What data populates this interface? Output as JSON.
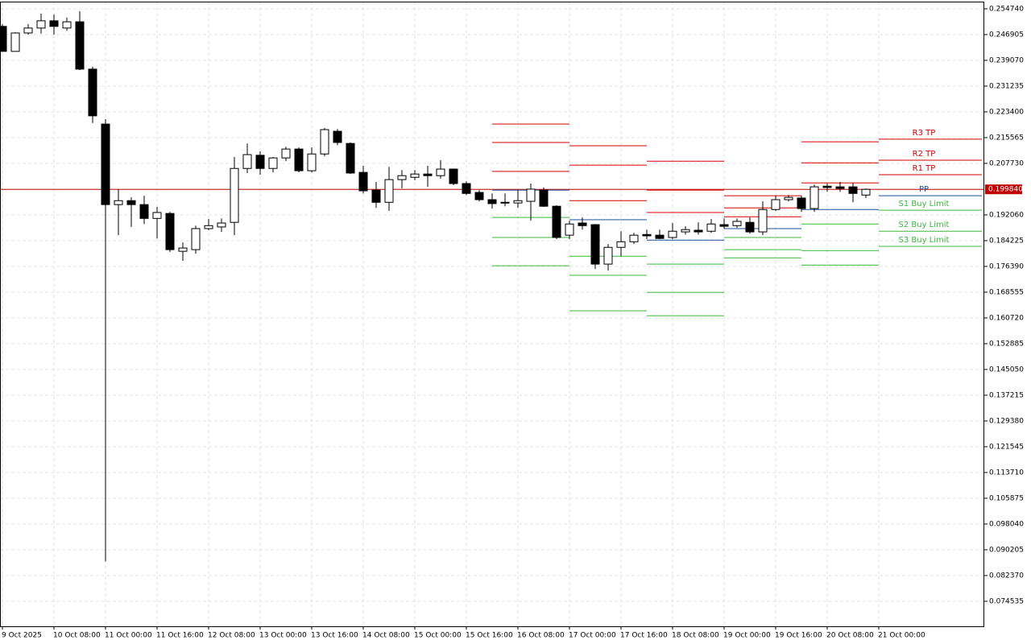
{
  "chart_data": {
    "type": "candlestick",
    "up_color": "#ffffff",
    "down_color": "#000000",
    "grid": true,
    "ylim": [
      0.06694,
      0.25694
    ],
    "yticks": [
      {
        "value": 0.25474,
        "label": "0.254740"
      },
      {
        "value": 0.246905,
        "label": "0.246905"
      },
      {
        "value": 0.23907,
        "label": "0.239070"
      },
      {
        "value": 0.231235,
        "label": "0.231235"
      },
      {
        "value": 0.2234,
        "label": "0.223400"
      },
      {
        "value": 0.215565,
        "label": "0.215565"
      },
      {
        "value": 0.20773,
        "label": "0.207730"
      },
      {
        "value": 0.19206,
        "label": "0.192060"
      },
      {
        "value": 0.184225,
        "label": "0.184225"
      },
      {
        "value": 0.17639,
        "label": "0.176390"
      },
      {
        "value": 0.168555,
        "label": "0.168555"
      },
      {
        "value": 0.16072,
        "label": "0.160720"
      },
      {
        "value": 0.152885,
        "label": "0.152885"
      },
      {
        "value": 0.14505,
        "label": "0.145050"
      },
      {
        "value": 0.137215,
        "label": "0.137215"
      },
      {
        "value": 0.12938,
        "label": "0.129380"
      },
      {
        "value": 0.121545,
        "label": "0.121545"
      },
      {
        "value": 0.11371,
        "label": "0.113710"
      },
      {
        "value": 0.105875,
        "label": "0.105875"
      },
      {
        "value": 0.09804,
        "label": "0.098040"
      },
      {
        "value": 0.090205,
        "label": "0.090205"
      },
      {
        "value": 0.08237,
        "label": "0.082370"
      },
      {
        "value": 0.074535,
        "label": "0.074535"
      }
    ],
    "categories": [
      "9 Oct 2025",
      null,
      null,
      null,
      "10 Oct 08:00",
      null,
      null,
      null,
      "11 Oct 00:00",
      null,
      null,
      null,
      "11 Oct 16:00",
      null,
      null,
      null,
      "12 Oct 08:00",
      null,
      null,
      null,
      "13 Oct 00:00",
      null,
      null,
      null,
      "13 Oct 16:00",
      null,
      null,
      null,
      "14 Oct 08:00",
      null,
      null,
      null,
      "15 Oct 00:00",
      null,
      null,
      null,
      "15 Oct 16:00",
      null,
      null,
      null,
      "16 Oct 08:00",
      null,
      null,
      null,
      "17 Oct 00:00",
      null,
      null,
      null,
      "17 Oct 16:00",
      null,
      null,
      null,
      "18 Oct 08:00",
      null,
      null,
      null,
      "19 Oct 00:00",
      null,
      null,
      null,
      "19 Oct 16:00",
      null,
      null,
      null,
      "20 Oct 08:00",
      null,
      null,
      null,
      "21 Oct 00:00",
      null,
      null,
      null,
      null,
      null,
      null,
      null
    ],
    "open": [
      0.2494,
      0.2418,
      0.2474,
      0.2489,
      0.2511,
      0.2489,
      0.2508,
      0.2364,
      0.2197,
      0.1952,
      0.1964,
      0.1952,
      0.191,
      0.1925,
      0.181,
      0.1815,
      0.1879,
      0.1884,
      0.1898,
      0.2062,
      0.2102,
      0.2062,
      0.2094,
      0.2121,
      0.2055,
      0.2106,
      0.2175,
      0.2138,
      0.205,
      0.1996,
      0.1959,
      0.2028,
      0.2035,
      0.2045,
      0.204,
      0.206,
      0.2016,
      0.1989,
      0.1967,
      0.1959,
      0.1957,
      0.1962,
      0.1996,
      0.1947,
      0.1859,
      0.1896,
      0.1891,
      0.1771,
      0.1822,
      0.1839,
      0.1861,
      0.1859,
      0.1852,
      0.1869,
      0.1874,
      0.1871,
      0.1891,
      0.1888,
      0.1898,
      0.1869,
      0.1937,
      0.1967,
      0.1972,
      0.194,
      0.2008,
      0.2006,
      0.2006,
      0.1981,
      null,
      null,
      null,
      null,
      null,
      null,
      null,
      null
    ],
    "high": [
      0.2501,
      0.2476,
      0.2501,
      0.2533,
      0.253,
      0.2521,
      0.254,
      0.2371,
      0.2212,
      0.1999,
      0.1974,
      0.1979,
      0.1945,
      0.193,
      0.1837,
      0.1888,
      0.1908,
      0.191,
      0.2097,
      0.2138,
      0.2114,
      0.2097,
      0.2128,
      0.2126,
      0.2126,
      0.2185,
      0.2182,
      0.2141,
      0.207,
      0.2021,
      0.2067,
      0.2057,
      0.2057,
      0.207,
      0.2087,
      0.2062,
      0.2023,
      0.1996,
      0.1986,
      0.1986,
      0.1996,
      0.2016,
      0.2004,
      0.195,
      0.1903,
      0.1913,
      0.1893,
      0.1832,
      0.1871,
      0.1866,
      0.1876,
      0.1876,
      0.1896,
      0.1886,
      0.1898,
      0.1908,
      0.191,
      0.191,
      0.1913,
      0.1962,
      0.1979,
      0.1981,
      0.1979,
      0.2013,
      0.2016,
      0.2021,
      0.2018,
      0.2001,
      null,
      null,
      null,
      null,
      null,
      null,
      null,
      null
    ],
    "low": [
      0.2418,
      0.2418,
      0.2469,
      0.2472,
      0.2469,
      0.2481,
      0.2361,
      0.22,
      0.0867,
      0.1859,
      0.1884,
      0.1893,
      0.1849,
      0.1808,
      0.1781,
      0.1803,
      0.1874,
      0.1869,
      0.1859,
      0.2048,
      0.2043,
      0.205,
      0.2084,
      0.205,
      0.205,
      0.2099,
      0.2133,
      0.2045,
      0.1986,
      0.1942,
      0.1933,
      0.2001,
      0.2026,
      0.2006,
      0.2031,
      0.2011,
      0.1981,
      0.1962,
      0.194,
      0.1947,
      0.1942,
      0.1903,
      0.1945,
      0.1847,
      0.1847,
      0.1876,
      0.1756,
      0.1751,
      0.1795,
      0.1832,
      0.1847,
      0.1847,
      0.1847,
      0.1861,
      0.1861,
      0.1866,
      0.1879,
      0.1881,
      0.1864,
      0.1859,
      0.1933,
      0.1962,
      0.193,
      0.193,
      0.1991,
      0.1991,
      0.1959,
      0.1972,
      null,
      null,
      null,
      null,
      null,
      null,
      null,
      null
    ],
    "close": [
      0.2418,
      0.2474,
      0.2489,
      0.2511,
      0.2494,
      0.2508,
      0.2364,
      0.2222,
      0.1952,
      0.1964,
      0.1952,
      0.191,
      0.1928,
      0.1815,
      0.182,
      0.1879,
      0.1888,
      0.1896,
      0.2062,
      0.2104,
      0.2062,
      0.2094,
      0.2121,
      0.2055,
      0.2106,
      0.218,
      0.2141,
      0.2048,
      0.1994,
      0.1959,
      0.2028,
      0.204,
      0.2045,
      0.204,
      0.206,
      0.2016,
      0.1986,
      0.1967,
      0.1955,
      0.1957,
      0.1964,
      0.1999,
      0.1947,
      0.1852,
      0.1893,
      0.1888,
      0.1771,
      0.1822,
      0.1839,
      0.1859,
      0.1857,
      0.1849,
      0.1871,
      0.1876,
      0.1869,
      0.1893,
      0.1886,
      0.1901,
      0.1869,
      0.1937,
      0.1967,
      0.1974,
      0.194,
      0.2006,
      0.2004,
      0.2001,
      0.1986,
      0.19984,
      null,
      null,
      null,
      null,
      null,
      null,
      null,
      null
    ],
    "current_price": {
      "value": 0.19984,
      "label": "0.199840",
      "color": "#c00000"
    },
    "levels": [
      {
        "name": "R3 TP",
        "color": "#d80000",
        "values": [
          null,
          null,
          null,
          null,
          null,
          null,
          null,
          null,
          null,
          null,
          null,
          null,
          null,
          null,
          null,
          null,
          null,
          null,
          null,
          null,
          null,
          null,
          null,
          null,
          null,
          null,
          null,
          null,
          null,
          null,
          null,
          null,
          null,
          null,
          null,
          null,
          null,
          null,
          0.2197,
          0.2197,
          0.2197,
          0.2197,
          0.2197,
          0.2197,
          0.2131,
          0.2131,
          0.2131,
          0.2131,
          0.2131,
          0.2131,
          0.2084,
          0.2084,
          0.2084,
          0.2084,
          0.2084,
          0.2084,
          0.1979,
          0.1979,
          0.1979,
          0.1979,
          0.1979,
          0.1979,
          0.2143,
          0.2143,
          0.2143,
          0.2143,
          0.2143,
          0.2143,
          0.2151,
          0.2151,
          0.2151,
          0.2151,
          0.2151,
          0.2151,
          0.2151,
          0.2151
        ]
      },
      {
        "name": "R2 TP",
        "color": "#d80000",
        "values": [
          null,
          null,
          null,
          null,
          null,
          null,
          null,
          null,
          null,
          null,
          null,
          null,
          null,
          null,
          null,
          null,
          null,
          null,
          null,
          null,
          null,
          null,
          null,
          null,
          null,
          null,
          null,
          null,
          null,
          null,
          null,
          null,
          null,
          null,
          null,
          null,
          null,
          null,
          0.2141,
          0.2141,
          0.2141,
          0.2141,
          0.2141,
          0.2141,
          0.2072,
          0.2072,
          0.2072,
          0.2072,
          0.2072,
          0.2072,
          0.1996,
          0.1996,
          0.1996,
          0.1996,
          0.1996,
          0.1996,
          0.1942,
          0.1942,
          0.1942,
          0.1942,
          0.1942,
          0.1942,
          0.2079,
          0.2079,
          0.2079,
          0.2079,
          0.2079,
          0.2079,
          0.2087,
          0.2087,
          0.2087,
          0.2087,
          0.2087,
          0.2087,
          0.2087,
          0.2087
        ]
      },
      {
        "name": "R1 TP",
        "color": "#d80000",
        "values": [
          null,
          null,
          null,
          null,
          null,
          null,
          null,
          null,
          null,
          null,
          null,
          null,
          null,
          null,
          null,
          null,
          null,
          null,
          null,
          null,
          null,
          null,
          null,
          null,
          null,
          null,
          null,
          null,
          null,
          null,
          null,
          null,
          null,
          null,
          null,
          null,
          null,
          null,
          0.2053,
          0.2053,
          0.2053,
          0.2053,
          0.2053,
          0.2053,
          0.1964,
          0.1964,
          0.1964,
          0.1964,
          0.1964,
          0.1964,
          0.1928,
          0.1928,
          0.1928,
          0.1928,
          0.1928,
          0.1928,
          0.1915,
          0.1915,
          0.1915,
          0.1915,
          0.1915,
          0.1915,
          0.2018,
          0.2018,
          0.2018,
          0.2018,
          0.2018,
          0.2018,
          0.2043,
          0.2043,
          0.2043,
          0.2043,
          0.2043,
          0.2043,
          0.2043,
          0.2043
        ]
      },
      {
        "name": "PP",
        "color": "#1f4e9a",
        "values": [
          null,
          null,
          null,
          null,
          null,
          null,
          null,
          null,
          null,
          null,
          null,
          null,
          null,
          null,
          null,
          null,
          null,
          null,
          null,
          null,
          null,
          null,
          null,
          null,
          null,
          null,
          null,
          null,
          null,
          null,
          null,
          null,
          null,
          null,
          null,
          null,
          null,
          null,
          0.1996,
          0.1996,
          0.1996,
          0.1996,
          0.1996,
          0.1996,
          0.1906,
          0.1906,
          0.1906,
          0.1906,
          0.1906,
          0.1906,
          0.1844,
          0.1844,
          0.1844,
          0.1844,
          0.1844,
          0.1844,
          0.1879,
          0.1879,
          0.1879,
          0.1879,
          0.1879,
          0.1879,
          0.1937,
          0.1937,
          0.1937,
          0.1937,
          0.1937,
          0.1937,
          0.1979,
          0.1979,
          0.1979,
          0.1979,
          0.1979,
          0.1979,
          0.1979,
          0.1979
        ]
      },
      {
        "name": "S1 Buy Limit",
        "color": "#3cb83c",
        "values": [
          null,
          null,
          null,
          null,
          null,
          null,
          null,
          null,
          null,
          null,
          null,
          null,
          null,
          null,
          null,
          null,
          null,
          null,
          null,
          null,
          null,
          null,
          null,
          null,
          null,
          null,
          null,
          null,
          null,
          null,
          null,
          null,
          null,
          null,
          null,
          null,
          null,
          null,
          0.1913,
          0.1913,
          0.1913,
          0.1913,
          0.1913,
          0.1913,
          0.1795,
          0.1795,
          0.1795,
          0.1795,
          0.1795,
          0.1795,
          0.1771,
          0.1771,
          0.1771,
          0.1771,
          0.1771,
          0.1771,
          0.1852,
          0.1852,
          0.1852,
          0.1852,
          0.1852,
          0.1852,
          0.1893,
          0.1893,
          0.1893,
          0.1893,
          0.1893,
          0.1893,
          0.1935,
          0.1935,
          0.1935,
          0.1935,
          0.1935,
          0.1935,
          0.1935,
          0.1935
        ]
      },
      {
        "name": "S2 Buy Limit",
        "color": "#3cb83c",
        "values": [
          null,
          null,
          null,
          null,
          null,
          null,
          null,
          null,
          null,
          null,
          null,
          null,
          null,
          null,
          null,
          null,
          null,
          null,
          null,
          null,
          null,
          null,
          null,
          null,
          null,
          null,
          null,
          null,
          null,
          null,
          null,
          null,
          null,
          null,
          null,
          null,
          null,
          null,
          0.1852,
          0.1852,
          0.1852,
          0.1852,
          0.1852,
          0.1852,
          0.1737,
          0.1737,
          0.1737,
          0.1737,
          0.1737,
          0.1737,
          0.1685,
          0.1685,
          0.1685,
          0.1685,
          0.1685,
          0.1685,
          0.1815,
          0.1815,
          0.1815,
          0.1815,
          0.1815,
          0.1815,
          0.1812,
          0.1812,
          0.1812,
          0.1812,
          0.1812,
          0.1812,
          0.1871,
          0.1871,
          0.1871,
          0.1871,
          0.1871,
          0.1871,
          0.1871,
          0.1871
        ]
      },
      {
        "name": "S3 Buy Limit",
        "color": "#3cb83c",
        "values": [
          null,
          null,
          null,
          null,
          null,
          null,
          null,
          null,
          null,
          null,
          null,
          null,
          null,
          null,
          null,
          null,
          null,
          null,
          null,
          null,
          null,
          null,
          null,
          null,
          null,
          null,
          null,
          null,
          null,
          null,
          null,
          null,
          null,
          null,
          null,
          null,
          null,
          null,
          0.1766,
          0.1766,
          0.1766,
          0.1766,
          0.1766,
          0.1766,
          0.1629,
          0.1629,
          0.1629,
          0.1629,
          0.1629,
          0.1629,
          0.1614,
          0.1614,
          0.1614,
          0.1614,
          0.1614,
          0.1614,
          0.179,
          0.179,
          0.179,
          0.179,
          0.179,
          0.179,
          0.1768,
          0.1768,
          0.1768,
          0.1768,
          0.1768,
          0.1768,
          0.1825,
          0.1825,
          0.1825,
          0.1825,
          0.1825,
          0.1825,
          0.1825,
          0.1825
        ]
      }
    ]
  }
}
